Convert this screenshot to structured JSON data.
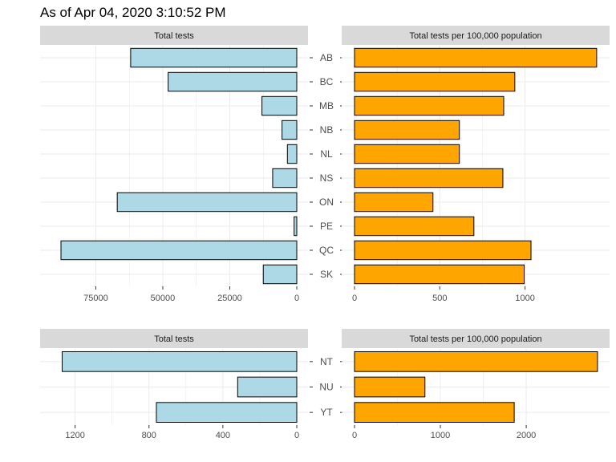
{
  "title": "As of  Apr 04, 2020 3:10:52 PM",
  "colors": {
    "left_bar": "#add8e6",
    "right_bar": "#ffa500",
    "strip": "#d9d9d9",
    "grid": "#ebebeb",
    "outline": "#000000"
  },
  "chart_data": [
    {
      "type": "bar",
      "orientation": "horizontal",
      "panel": "provinces-total-tests",
      "strip_label": "Total tests",
      "categories": [
        "AB",
        "BC",
        "MB",
        "NB",
        "NL",
        "NS",
        "ON",
        "PE",
        "QC",
        "SK"
      ],
      "values": [
        62000,
        48000,
        13000,
        5500,
        3500,
        9000,
        67000,
        1000,
        88000,
        12500
      ],
      "xlim": [
        0,
        91000
      ],
      "reversed": true,
      "ticks": [
        75000,
        50000,
        25000,
        0
      ],
      "tick_labels": [
        "75000",
        "50000",
        "25000",
        "0"
      ],
      "grid": true
    },
    {
      "type": "bar",
      "orientation": "horizontal",
      "panel": "provinces-tests-per-100k",
      "strip_label": "Total tests per 100,000 population",
      "categories": [
        "AB",
        "BC",
        "MB",
        "NB",
        "NL",
        "NS",
        "ON",
        "PE",
        "QC",
        "SK"
      ],
      "values": [
        1420,
        940,
        875,
        615,
        615,
        870,
        460,
        700,
        1035,
        995
      ],
      "xlim": [
        0,
        1430
      ],
      "reversed": false,
      "ticks": [
        0,
        500,
        1000
      ],
      "tick_labels": [
        "0",
        "500",
        "1000"
      ],
      "grid": true
    },
    {
      "type": "bar",
      "orientation": "horizontal",
      "panel": "territories-total-tests",
      "strip_label": "Total tests",
      "categories": [
        "NT",
        "NU",
        "YT"
      ],
      "values": [
        1270,
        320,
        760
      ],
      "xlim": [
        0,
        1320
      ],
      "reversed": true,
      "ticks": [
        1200,
        800,
        400,
        0
      ],
      "tick_labels": [
        "1200",
        "800",
        "400",
        "0"
      ],
      "grid": true
    },
    {
      "type": "bar",
      "orientation": "horizontal",
      "panel": "territories-tests-per-100k",
      "strip_label": "Total tests per 100,000 population",
      "categories": [
        "NT",
        "NU",
        "YT"
      ],
      "values": [
        2830,
        820,
        1860
      ],
      "xlim": [
        0,
        2840
      ],
      "reversed": false,
      "ticks": [
        0,
        1000,
        2000
      ],
      "tick_labels": [
        "0",
        "1000",
        "2000"
      ],
      "grid": true
    }
  ]
}
